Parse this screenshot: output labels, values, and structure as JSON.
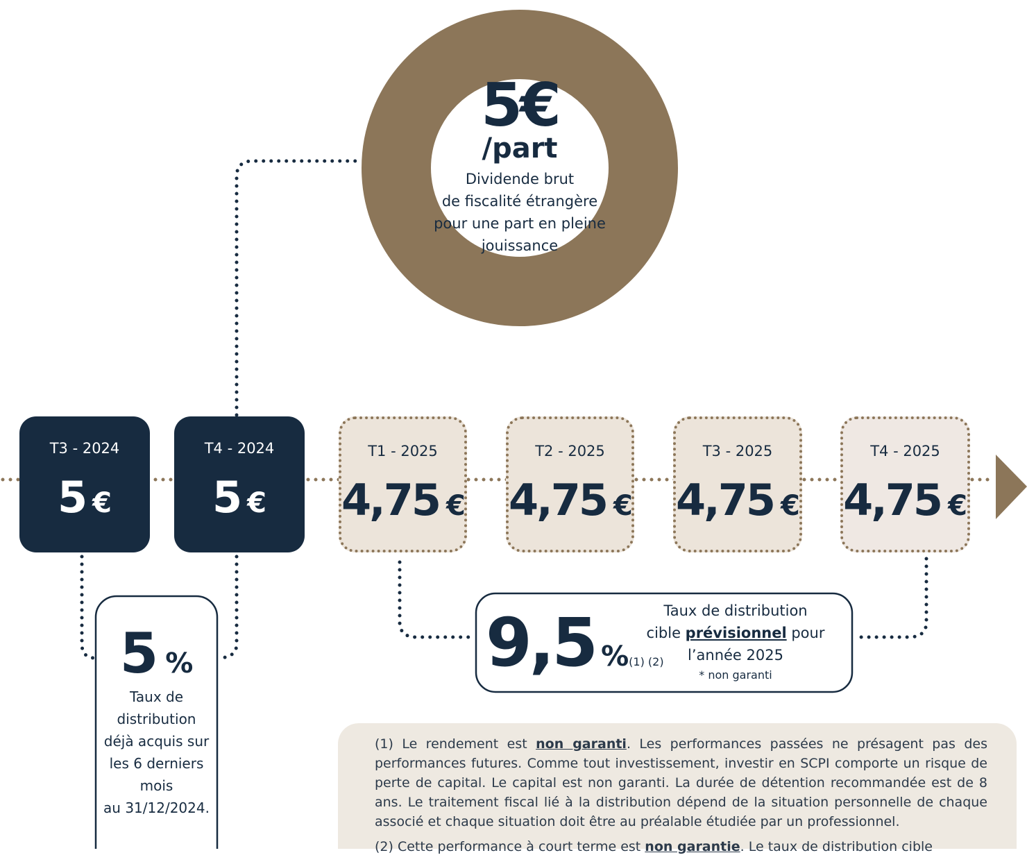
{
  "circle": {
    "amount": "5€",
    "unit": "/part",
    "caption": [
      "Dividende brut",
      "de fiscalité étrangère",
      "pour une part en pleine",
      "jouissance"
    ]
  },
  "quarters": [
    {
      "period": "T3 - 2024",
      "amount": "5",
      "currency": "€"
    },
    {
      "period": "T4 - 2024",
      "amount": "5",
      "currency": "€"
    },
    {
      "period": "T1 - 2025",
      "amount": "4,75",
      "currency": "€"
    },
    {
      "period": "T2 - 2025",
      "amount": "4,75",
      "currency": "€"
    },
    {
      "period": "T3 - 2025",
      "amount": "4,75",
      "currency": "€"
    },
    {
      "period": "T4 - 2025",
      "amount": "4,75",
      "currency": "€"
    }
  ],
  "acquired_rate": {
    "value": "5",
    "unit": "%",
    "caption": [
      "Taux de",
      "distribution",
      "déjà acquis sur",
      "les 6 derniers",
      "mois",
      "au 31/12/2024."
    ]
  },
  "target_rate": {
    "value": "9,5",
    "unit": "%",
    "refs": "(1) (2)",
    "caption_start": "Taux de distribution cible ",
    "caption_bold": "prévisionnel",
    "caption_end": " pour l’année 2025",
    "note": "* non garanti"
  },
  "footnotes": [
    {
      "before": "(1) Le rendement est ",
      "bold": "non garanti",
      "after": ". Les performances passées ne présagent pas des performances futures. Comme tout investissement, investir en SCPI comporte un risque de perte de capital. Le capital est non garanti. La durée de détention recommandée est de 8 ans. Le traitement fiscal lié à la distribution dépend de la situation personnelle de chaque associé et chaque situation doit être au préalable étudiée par un professionnel."
    },
    {
      "before": "(2) Cette performance à court terme est ",
      "bold": "non garantie",
      "after": ". Le taux de distribution cible"
    }
  ]
}
